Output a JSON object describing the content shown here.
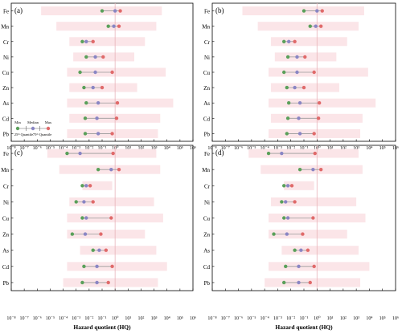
{
  "chart_data": {
    "type": "dot-range",
    "shared": {
      "xlabel": "Hazard quotient (HQ)",
      "xscale": "log",
      "xlim_exp": [
        -8,
        6
      ],
      "tick_labels": [
        "10⁻⁸",
        "10⁻⁷",
        "10⁻⁶",
        "10⁻⁵",
        "10⁻⁴",
        "10⁻³",
        "10⁻²",
        "10⁻¹",
        "10⁰",
        "10¹",
        "10²",
        "10³",
        "10⁴",
        "10⁵",
        "10⁶"
      ],
      "reference_line": 1,
      "categories": [
        "Fe",
        "Mn",
        "Cr",
        "Ni",
        "Cu",
        "Zn",
        "As",
        "Cd",
        "Pb"
      ],
      "colors": {
        "min": "#5aa05a",
        "median": "#8a86c4",
        "max": "#e06a6a",
        "range_band": "#fbe5e8",
        "whisker": "#999999"
      }
    },
    "legend": {
      "min": "Min",
      "median": "Median",
      "max": "Max",
      "q25": "25ᵗʰ Quantile",
      "q75": "75ᵗʰ Quantile"
    },
    "panels": [
      {
        "label": "(a)",
        "min": [
          0.1,
          0.3,
          0.003,
          0.006,
          0.002,
          0.004,
          0.006,
          0.005,
          0.005
        ],
        "median": [
          1.0,
          0.8,
          0.006,
          0.03,
          0.03,
          0.02,
          0.05,
          0.04,
          0.05
        ],
        "max": [
          2.5,
          2.0,
          0.02,
          0.12,
          0.6,
          0.1,
          1.5,
          1.3,
          0.6
        ],
        "band": [
          [
            2e-06,
            4000
          ],
          [
            3e-05,
            1500
          ],
          [
            0.0003,
            200
          ],
          [
            0.0006,
            30
          ],
          [
            0.0002,
            8000
          ],
          [
            0.0003,
            50
          ],
          [
            0.0002,
            30000
          ],
          [
            0.0003,
            3000
          ],
          [
            0.0002,
            2000
          ]
        ]
      },
      {
        "label": "(b)",
        "min": [
          0.1,
          0.3,
          0.003,
          0.006,
          0.003,
          0.005,
          0.007,
          0.006,
          0.005
        ],
        "median": [
          1.0,
          0.8,
          0.007,
          0.03,
          0.03,
          0.02,
          0.05,
          0.04,
          0.05
        ],
        "max": [
          2.5,
          2.0,
          0.02,
          0.12,
          0.6,
          0.1,
          1.5,
          1.3,
          0.6
        ],
        "band": [
          [
            2e-06,
            4000
          ],
          [
            3e-05,
            1500
          ],
          [
            0.0003,
            200
          ],
          [
            0.0006,
            30
          ],
          [
            0.0002,
            8000
          ],
          [
            0.0003,
            50
          ],
          [
            0.0002,
            30000
          ],
          [
            0.0003,
            3000
          ],
          [
            0.0002,
            2000
          ]
        ]
      },
      {
        "label": "(c)",
        "min": [
          0.0002,
          0.05,
          0.003,
          0.001,
          0.003,
          0.0005,
          0.02,
          0.004,
          0.003
        ],
        "median": [
          0.002,
          0.5,
          0.006,
          0.004,
          0.006,
          0.005,
          0.06,
          0.04,
          0.04
        ],
        "max": [
          0.7,
          2.0,
          0.012,
          0.02,
          0.5,
          0.08,
          0.2,
          0.6,
          0.3
        ],
        "band": [
          [
            6e-06,
            1500
          ],
          [
            5e-05,
            3000
          ],
          [
            0.003,
            0.6
          ],
          [
            0.0003,
            1000
          ],
          [
            0.0002,
            5000
          ],
          [
            0.0002,
            200
          ],
          [
            0.002,
            1500
          ],
          [
            0.0002,
            10000
          ],
          [
            0.0001,
            2000
          ]
        ]
      },
      {
        "label": "(d)",
        "min": [
          0.0002,
          0.05,
          0.003,
          0.002,
          0.003,
          0.0005,
          0.02,
          0.004,
          0.003
        ],
        "median": [
          0.002,
          0.5,
          0.006,
          0.004,
          0.006,
          0.005,
          0.06,
          0.04,
          0.04
        ],
        "max": [
          0.7,
          2.0,
          0.012,
          0.02,
          0.5,
          0.08,
          0.2,
          0.6,
          0.3
        ],
        "band": [
          [
            6e-06,
            1500
          ],
          [
            5e-05,
            3000
          ],
          [
            0.003,
            0.6
          ],
          [
            0.0003,
            1000
          ],
          [
            0.0002,
            5000
          ],
          [
            0.0002,
            200
          ],
          [
            0.002,
            1500
          ],
          [
            0.0002,
            10000
          ],
          [
            0.0001,
            2000
          ]
        ]
      }
    ]
  }
}
